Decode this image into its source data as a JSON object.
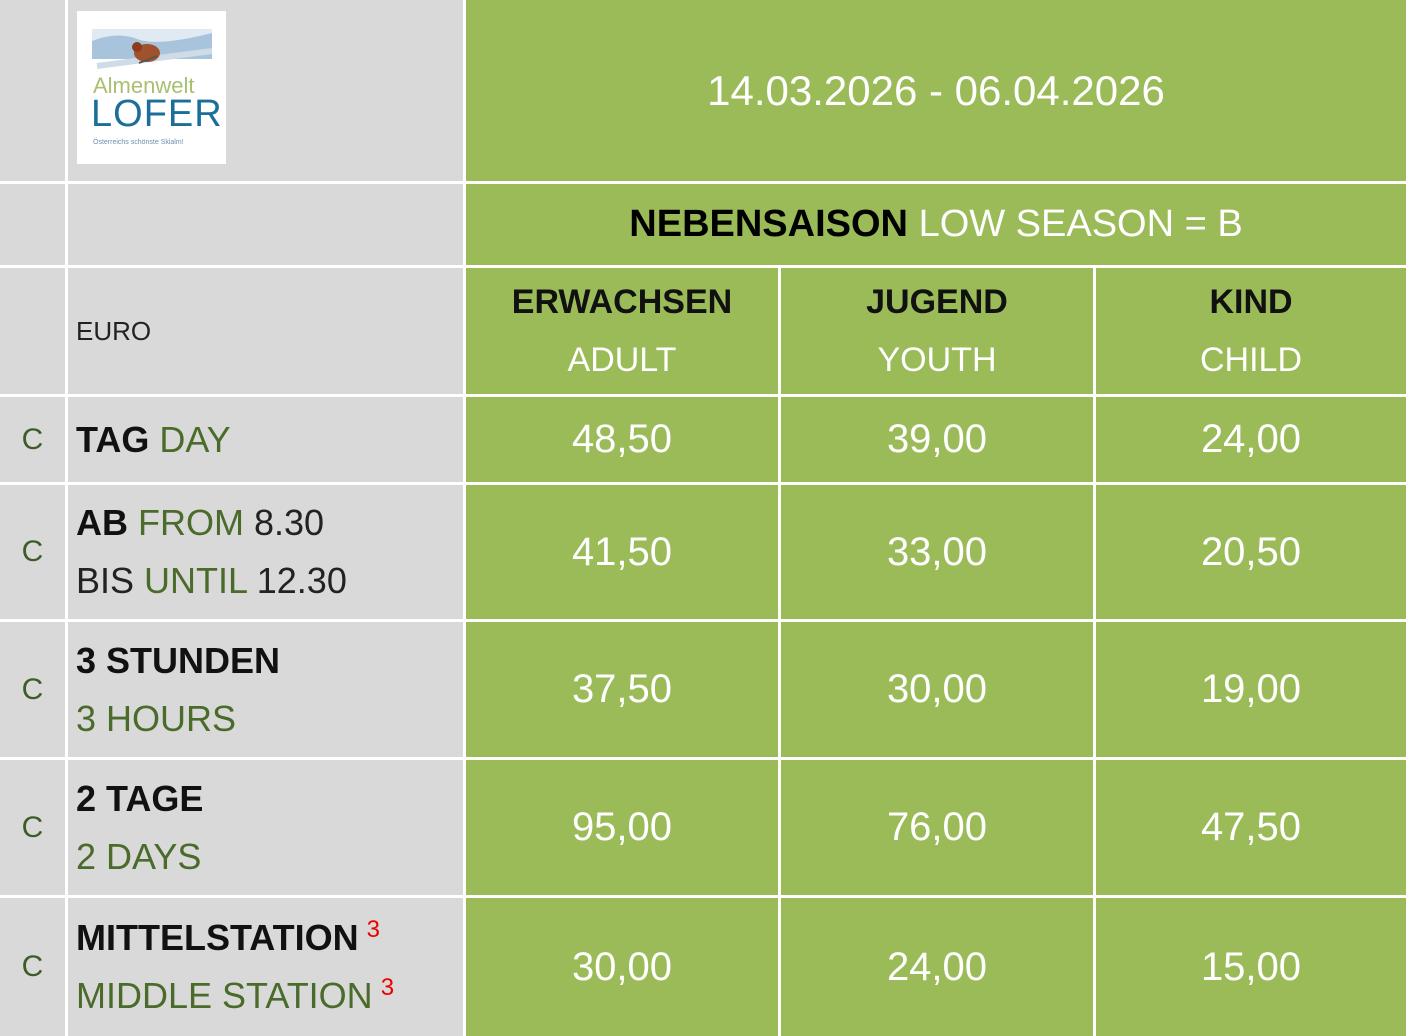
{
  "logo": {
    "line1": "Almenwelt",
    "line2": "LOFER",
    "tagline": "Österreichs schönste Skialm!"
  },
  "header": {
    "date_range": "14.03.2026 - 06.04.2026",
    "season_de": "NEBENSAISON",
    "season_en": "LOW SEASON = B",
    "currency": "EURO"
  },
  "categories": [
    {
      "de": "ERWACHSEN",
      "en": "ADULT"
    },
    {
      "de": "JUGEND",
      "en": "YOUTH"
    },
    {
      "de": "KIND",
      "en": "CHILD"
    }
  ],
  "rows": [
    {
      "code": "C",
      "l1_de": "TAG",
      "l1_en": "DAY",
      "prices": [
        "48,50",
        "39,00",
        "24,00"
      ]
    },
    {
      "code": "C",
      "l1_de": "AB",
      "l1_en": "FROM",
      "l1_val": "8.30",
      "l2_de": "BIS",
      "l2_en": "UNTIL",
      "l2_val": "12.30",
      "prices": [
        "41,50",
        "33,00",
        "20,50"
      ]
    },
    {
      "code": "C",
      "l1_de": "3 STUNDEN",
      "l2_en": "3 HOURS",
      "prices": [
        "37,50",
        "30,00",
        "19,00"
      ]
    },
    {
      "code": "C",
      "l1_de": "2 TAGE",
      "l2_en": "2 DAYS",
      "prices": [
        "95,00",
        "76,00",
        "47,50"
      ]
    },
    {
      "code": "C",
      "l1_de": "MITTELSTATION",
      "l1_sup": "3",
      "l2_en": "MIDDLE STATION",
      "l2_sup": "3",
      "prices": [
        "30,00",
        "24,00",
        "15,00"
      ]
    }
  ],
  "colors": {
    "green": "#9bbb59",
    "grey": "#d9d9d9",
    "dark_green_text": "#4a6b2a",
    "footnote": "#ee0000"
  }
}
